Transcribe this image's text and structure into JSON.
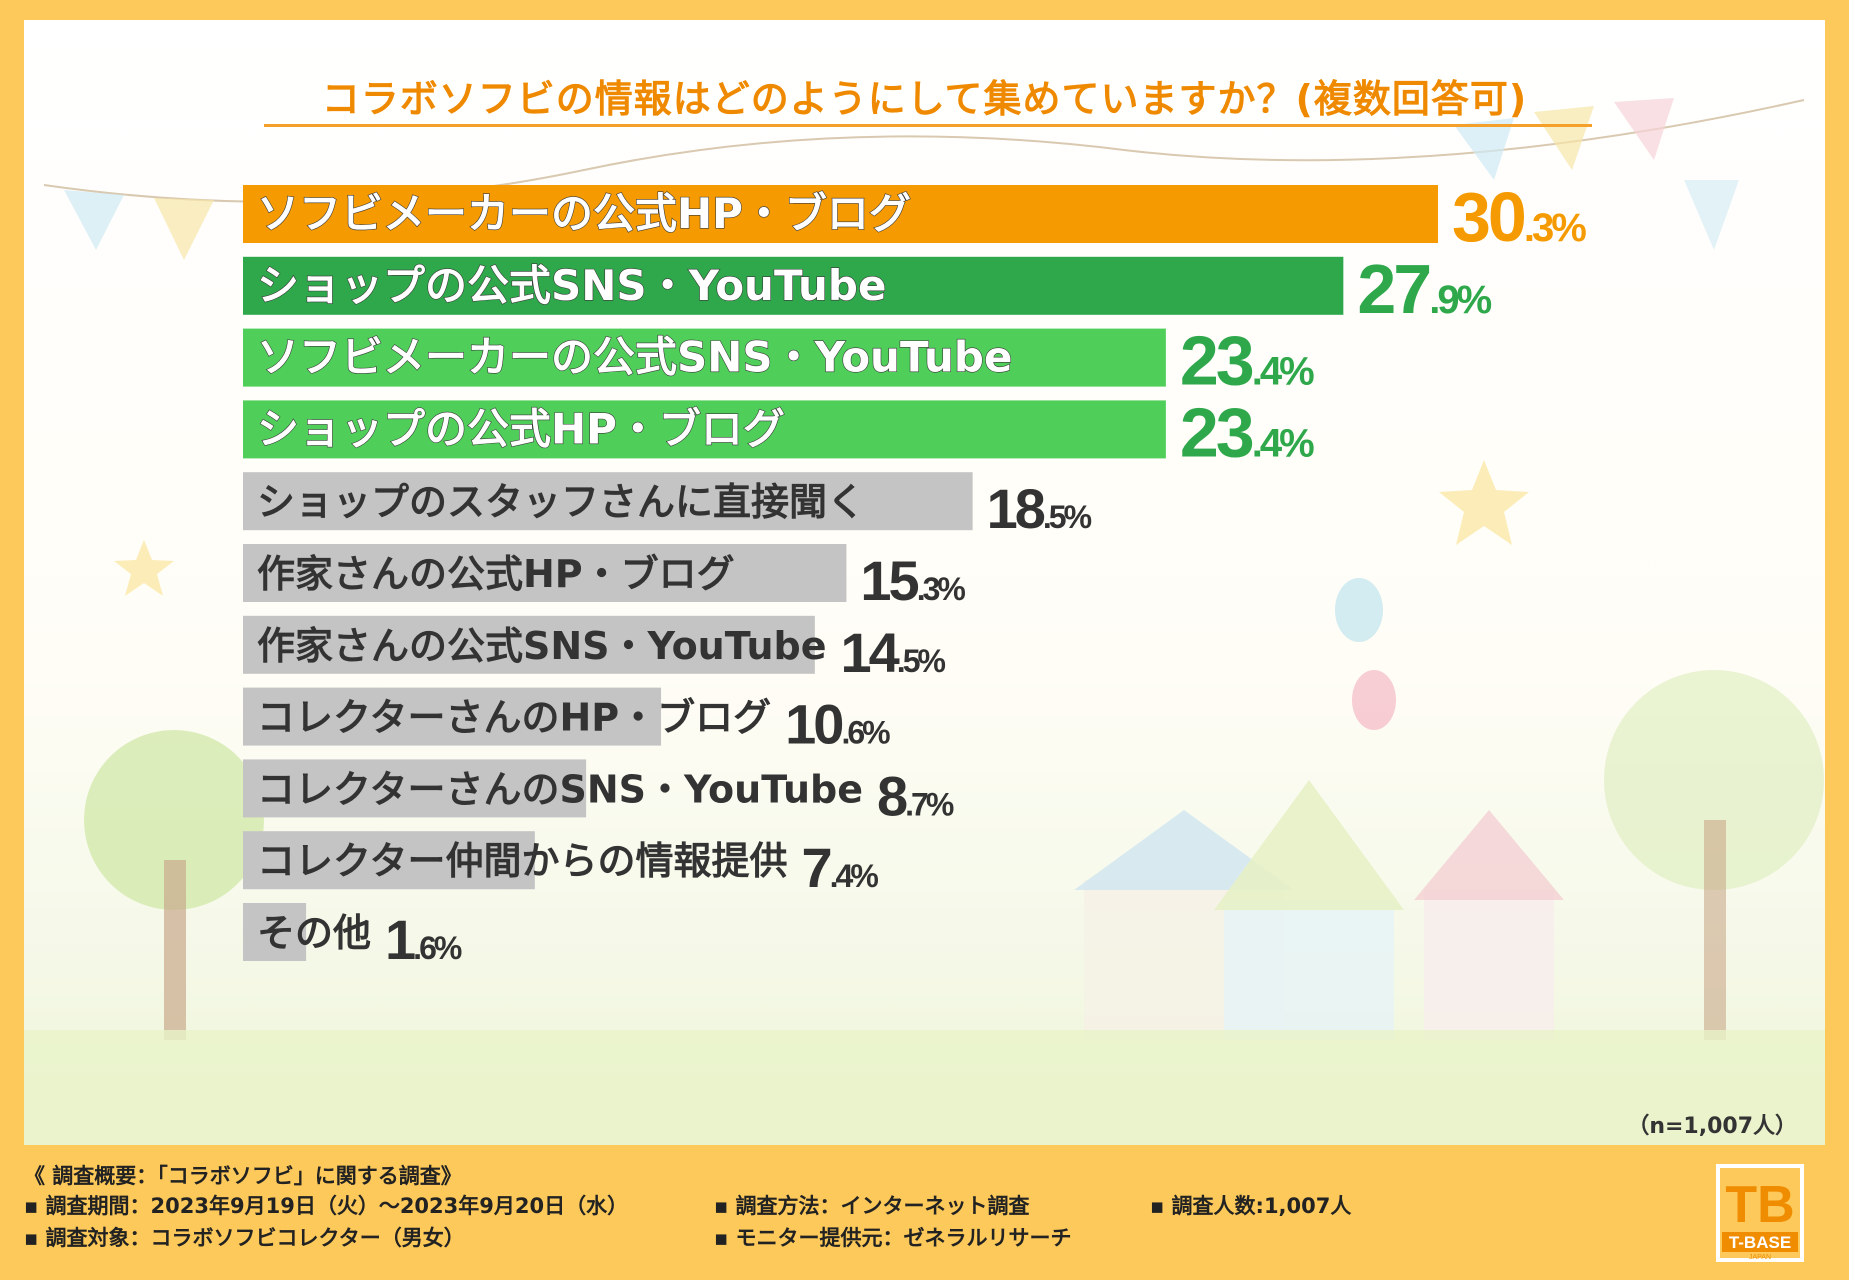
{
  "title": "コラボソフビの情報はどのようにして集めていますか？(複数回答可)",
  "sample_note": "（n=1,007人）",
  "colors": {
    "first": "#f59a00",
    "second": "#2ea84a",
    "third": "#4fcf5a",
    "rest": "#c4c4c4",
    "background": "#fcc95a"
  },
  "chart_data": {
    "type": "bar",
    "orientation": "horizontal",
    "title": "コラボソフビの情報はどのようにして集めていますか？(複数回答可)",
    "unit": "%",
    "xlim": [
      0,
      30.3
    ],
    "categories": [
      "ソフビメーカーの公式HP・ブログ",
      "ショップの公式SNS・YouTube",
      "ソフビメーカーの公式SNS・YouTube",
      "ショップの公式HP・ブログ",
      "ショップのスタッフさんに直接聞く",
      "作家さんの公式HP・ブログ",
      "作家さんの公式SNS・YouTube",
      "コレクターさんのHP・ブログ",
      "コレクターさんのSNS・YouTube",
      "コレクター仲間からの情報提供",
      "その他"
    ],
    "values": [
      30.3,
      27.9,
      23.4,
      23.4,
      18.5,
      15.3,
      14.5,
      10.6,
      8.7,
      7.4,
      1.6
    ],
    "value_labels": [
      {
        "main": "30",
        "decimal": ".3",
        "unit": "%"
      },
      {
        "main": "27",
        "decimal": ".9",
        "unit": "%"
      },
      {
        "main": "23",
        "decimal": ".4",
        "unit": "%"
      },
      {
        "main": "23",
        "decimal": ".4",
        "unit": "%"
      },
      {
        "main": "18",
        "decimal": ".5",
        "unit": "%"
      },
      {
        "main": "15",
        "decimal": ".3",
        "unit": "%"
      },
      {
        "main": "14",
        "decimal": ".5",
        "unit": "%"
      },
      {
        "main": "10",
        "decimal": ".6",
        "unit": "%"
      },
      {
        "main": "8",
        "decimal": ".7",
        "unit": "%"
      },
      {
        "main": "7",
        "decimal": ".4",
        "unit": "%"
      },
      {
        "main": "1",
        "decimal": ".6",
        "unit": "%"
      }
    ]
  },
  "footer": {
    "summary": "《 調査概要：「コラボソフビ」に関する調査》",
    "period": "▪ 調査期間：2023年9月19日（火）～2023年9月20日（水）",
    "method": "▪ 調査方法：インターネット調査",
    "count": "▪ 調査人数:1,007人",
    "target": "▪ 調査対象：コラボソフビコレクター（男女）",
    "provider": "▪ モニター提供元：ゼネラルリサーチ"
  },
  "logo": {
    "mark": "TB",
    "name": "T-BASE",
    "sub": "JAPAN"
  }
}
